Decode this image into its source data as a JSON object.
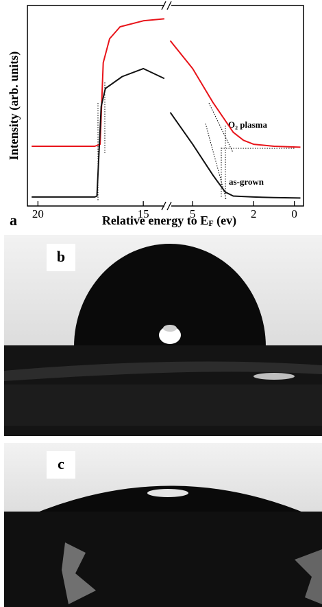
{
  "chart_data": {
    "type": "line",
    "panel_label": "a",
    "ylabel": "Intensity (arb. units)",
    "xlabel": [
      "Relative energy to E",
      "F",
      " (ev)"
    ],
    "xlim_segments": [
      [
        20.5,
        13.9
      ],
      [
        6.15,
        -0.45
      ]
    ],
    "xticks": [
      20,
      15,
      5,
      2,
      0
    ],
    "ylim": [
      0,
      100
    ],
    "series": [
      {
        "name": "O₂ plasma",
        "color": "#e8141a",
        "x": [
          20.3,
          17.3,
          17.05,
          16.9,
          16.6,
          16.1,
          15.0,
          14.0,
          null,
          6.1,
          5.0,
          4.0,
          3.0,
          2.5,
          2.0,
          1.0,
          -0.3
        ],
        "values": [
          30,
          30,
          31,
          72,
          84,
          90,
          93,
          94,
          null,
          83,
          69,
          52,
          37,
          33,
          31,
          30,
          29.5
        ]
      },
      {
        "name": "as-grown",
        "color": "#111111",
        "x": [
          20.3,
          17.3,
          17.2,
          17.0,
          16.8,
          16.0,
          15.0,
          14.0,
          null,
          6.1,
          5.0,
          4.0,
          3.4,
          3.0,
          2.0,
          1.0,
          -0.3
        ],
        "values": [
          4.5,
          4.5,
          5,
          50,
          59,
          65,
          69,
          64,
          null,
          47,
          31,
          15.5,
          7,
          5,
          4.5,
          4.2,
          4
        ]
      }
    ]
  },
  "photos": [
    {
      "label": "b"
    },
    {
      "label": "c"
    }
  ]
}
